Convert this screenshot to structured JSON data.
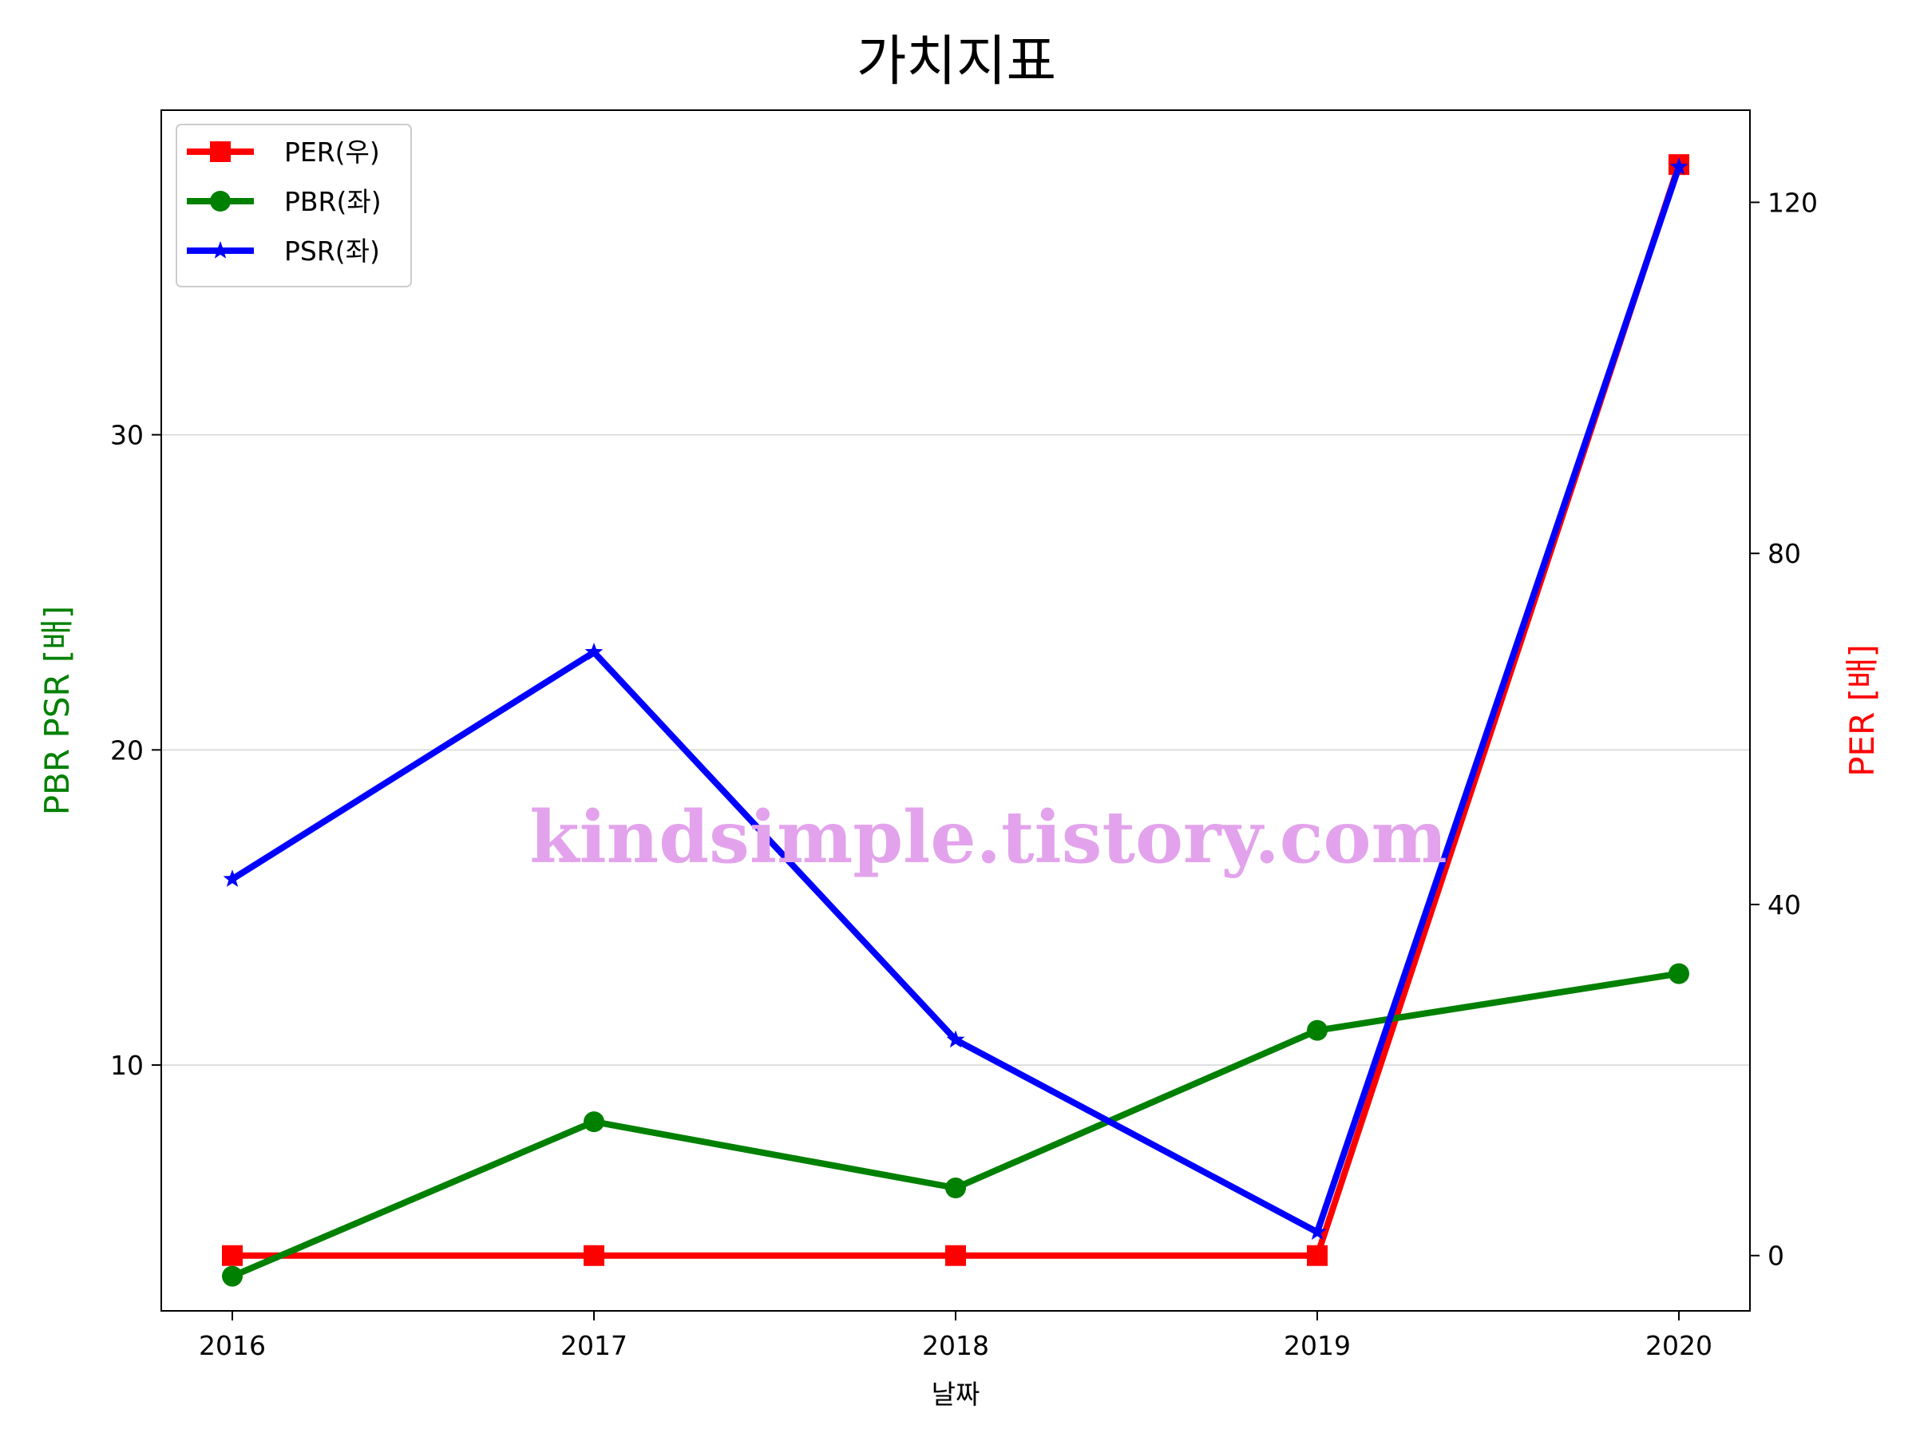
{
  "chart_data": {
    "type": "line",
    "title": "가치지표",
    "xlabel": "날짜",
    "ylabel_left": "PBR PSR [배]",
    "ylabel_right": "PER [배]",
    "categories": [
      "2016",
      "2017",
      "2018",
      "2019",
      "2020"
    ],
    "y_left": {
      "ticks": [
        10,
        20,
        30
      ],
      "ylim": [
        2.2,
        40.3
      ],
      "grid": true
    },
    "y_right": {
      "ticks": [
        0,
        40,
        80,
        120
      ],
      "ylim": [
        -6.3,
        130.5
      ]
    },
    "series": [
      {
        "name": "PER(우)",
        "axis": "right",
        "color": "#ff0000",
        "marker": "square",
        "values": [
          0,
          0,
          0,
          0,
          124.3
        ]
      },
      {
        "name": "PBR(좌)",
        "axis": "left",
        "color": "#008000",
        "marker": "circle",
        "values": [
          3.3,
          8.2,
          6.1,
          11.1,
          12.9
        ]
      },
      {
        "name": "PSR(좌)",
        "axis": "left",
        "color": "#0000ff",
        "marker": "star",
        "values": [
          15.9,
          23.1,
          10.8,
          4.7,
          38.5
        ]
      }
    ],
    "legend_position": "top-left",
    "watermark": "kindsimple.tistory.com"
  }
}
